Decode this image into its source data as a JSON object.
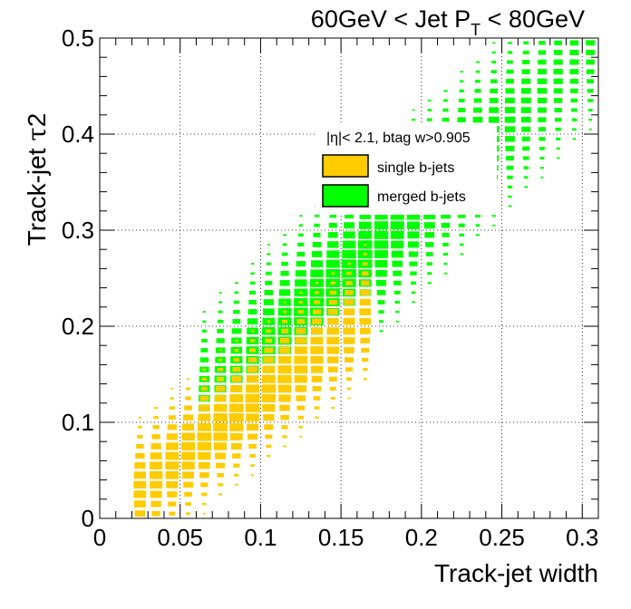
{
  "chart_data": {
    "type": "heatmap",
    "title": "60GeV < Jet P_T < 80GeV",
    "title_parts": {
      "prefix": "60GeV < Jet P",
      "subscript": "T",
      "suffix": " < 80GeV"
    },
    "xlabel": "Track-jet width",
    "ylabel": "Track-jet τ2",
    "ylabel_parts": {
      "main": "Track-jet ",
      "tau": "τ",
      "num": "2"
    },
    "xlim": [
      0,
      0.31
    ],
    "ylim": [
      0,
      0.5
    ],
    "xticks": [
      0,
      0.05,
      0.1,
      0.15,
      0.2,
      0.25,
      0.3
    ],
    "xtick_labels": [
      "0",
      "0.05",
      "0.1",
      "0.15",
      "0.2",
      "0.25",
      "0.3"
    ],
    "yticks": [
      0,
      0.1,
      0.2,
      0.3,
      0.4,
      0.5
    ],
    "ytick_labels": [
      "0",
      "0.1",
      "0.2",
      "0.3",
      "0.4",
      "0.5"
    ],
    "grid": true,
    "legend": {
      "placement": "upper-center",
      "header": "|η|< 2.1, btag w>0.905",
      "entries": [
        {
          "name": "single b-jets",
          "color": "#ffcc00"
        },
        {
          "name": "merged b-jets",
          "color": "#00ff00"
        }
      ]
    },
    "series": [
      {
        "name": "single b-jets",
        "color": "#ffcc00"
      },
      {
        "name": "merged b-jets",
        "color": "#00ff00"
      }
    ],
    "bins": {
      "nx": 31,
      "ny": 50,
      "x_bin_width": 0.01,
      "y_bin_width": 0.01
    },
    "distributions": {
      "single b-jets": {
        "ridge_slope": 1.28,
        "ridge_intercept": 0.0,
        "width_sigma": 0.03,
        "x_range": [
          0.02,
          0.17
        ],
        "peak_x": 0.085
      },
      "merged b-jets": {
        "ridge_slope": 1.55,
        "ridge_intercept": 0.02,
        "width_sigma": 0.04,
        "x_range": [
          0.06,
          0.305
        ],
        "peak_x": 0.15
      }
    }
  }
}
